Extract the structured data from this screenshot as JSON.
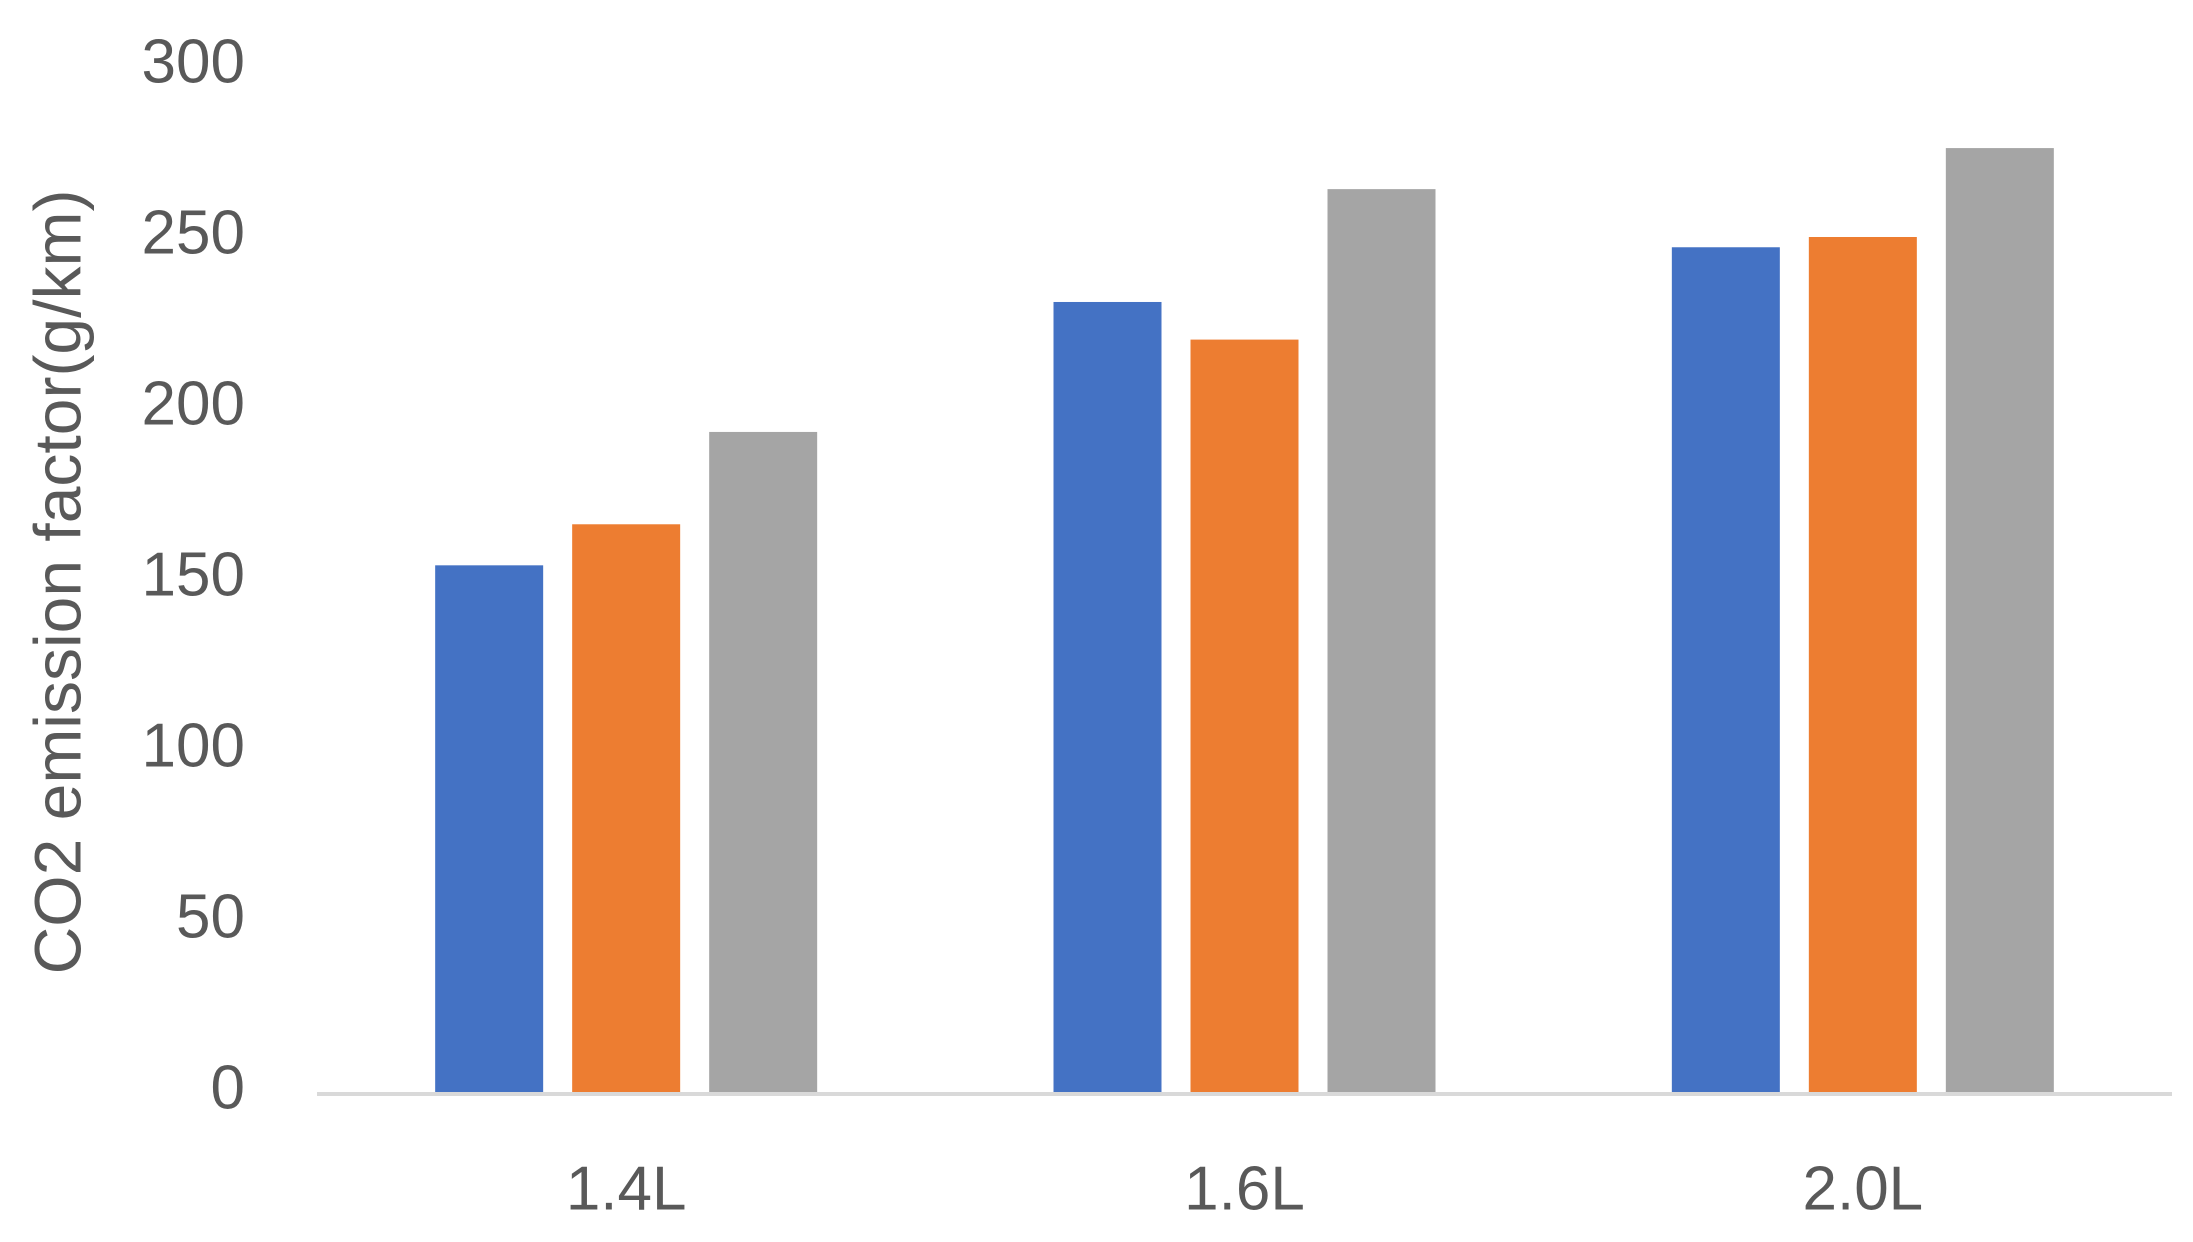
{
  "chart_data": {
    "type": "bar",
    "y_label": "CO2  emission factor(g/km)",
    "categories": [
      "1.4L",
      "1.6L",
      "2.0L"
    ],
    "series": [
      {
        "color": "#4472c4",
        "values": [
          154,
          231,
          247
        ]
      },
      {
        "color": "#ed7d31",
        "values": [
          166,
          220,
          250
        ]
      },
      {
        "color": "#a5a5a5",
        "values": [
          193,
          264,
          276
        ]
      }
    ],
    "ylim": [
      0,
      300
    ],
    "yticks": [
      0,
      50,
      100,
      150,
      200,
      250,
      300
    ],
    "grid": false
  }
}
